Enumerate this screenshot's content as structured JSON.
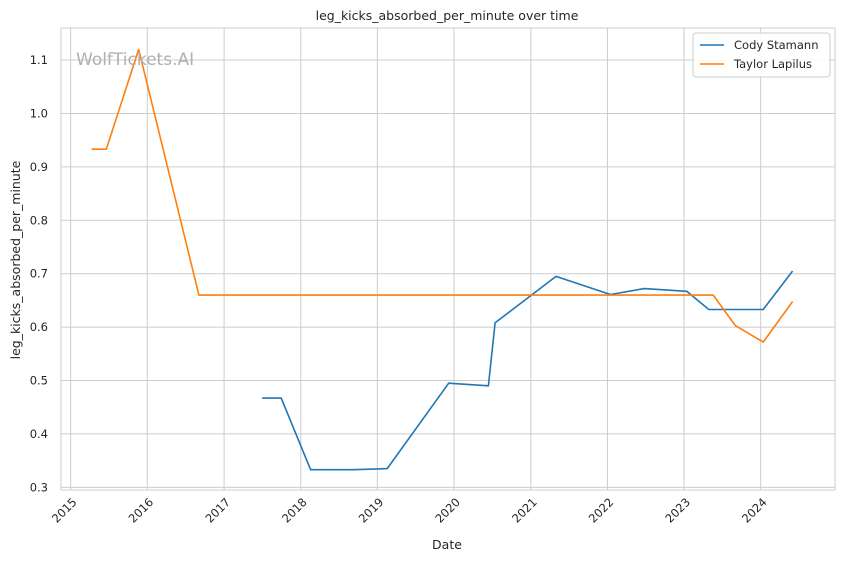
{
  "chart_data": {
    "type": "line",
    "title": "leg_kicks_absorbed_per_minute over time",
    "xlabel": "Date",
    "ylabel": "leg_kicks_absorbed_per_minute",
    "watermark": "WolfTickets.AI",
    "x_ticks": [
      "2015",
      "2016",
      "2017",
      "2018",
      "2019",
      "2020",
      "2021",
      "2022",
      "2023",
      "2024"
    ],
    "y_ticks": [
      "0.3",
      "0.4",
      "0.5",
      "0.6",
      "0.7",
      "0.8",
      "0.9",
      "1.0",
      "1.1"
    ],
    "xlim": [
      "2014-11-16",
      "2024-12-20"
    ],
    "ylim": [
      0.295,
      1.16
    ],
    "grid": true,
    "legend_position": "top-right",
    "series": [
      {
        "name": "Cody Stamann",
        "color": "#1f77b4",
        "points": [
          {
            "x": "2017-07-01",
            "y": 0.467
          },
          {
            "x": "2017-09-30",
            "y": 0.467
          },
          {
            "x": "2018-02-17",
            "y": 0.333
          },
          {
            "x": "2018-09-08",
            "y": 0.333
          },
          {
            "x": "2019-02-17",
            "y": 0.335
          },
          {
            "x": "2019-12-07",
            "y": 0.495
          },
          {
            "x": "2020-06-13",
            "y": 0.49
          },
          {
            "x": "2020-07-15",
            "y": 0.608
          },
          {
            "x": "2021-05-01",
            "y": 0.695
          },
          {
            "x": "2022-01-15",
            "y": 0.661
          },
          {
            "x": "2022-06-25",
            "y": 0.672
          },
          {
            "x": "2023-01-14",
            "y": 0.667
          },
          {
            "x": "2023-04-29",
            "y": 0.633
          },
          {
            "x": "2024-01-13",
            "y": 0.633
          },
          {
            "x": "2024-06-01",
            "y": 0.705
          }
        ]
      },
      {
        "name": "Taylor Lapilus",
        "color": "#ff7f0e",
        "points": [
          {
            "x": "2015-04-11",
            "y": 0.933
          },
          {
            "x": "2015-06-20",
            "y": 0.933
          },
          {
            "x": "2015-11-21",
            "y": 1.12
          },
          {
            "x": "2016-09-03",
            "y": 0.66
          },
          {
            "x": "2023-05-20",
            "y": 0.66
          },
          {
            "x": "2023-09-02",
            "y": 0.603
          },
          {
            "x": "2024-01-13",
            "y": 0.572
          },
          {
            "x": "2024-06-01",
            "y": 0.648
          }
        ]
      }
    ]
  }
}
